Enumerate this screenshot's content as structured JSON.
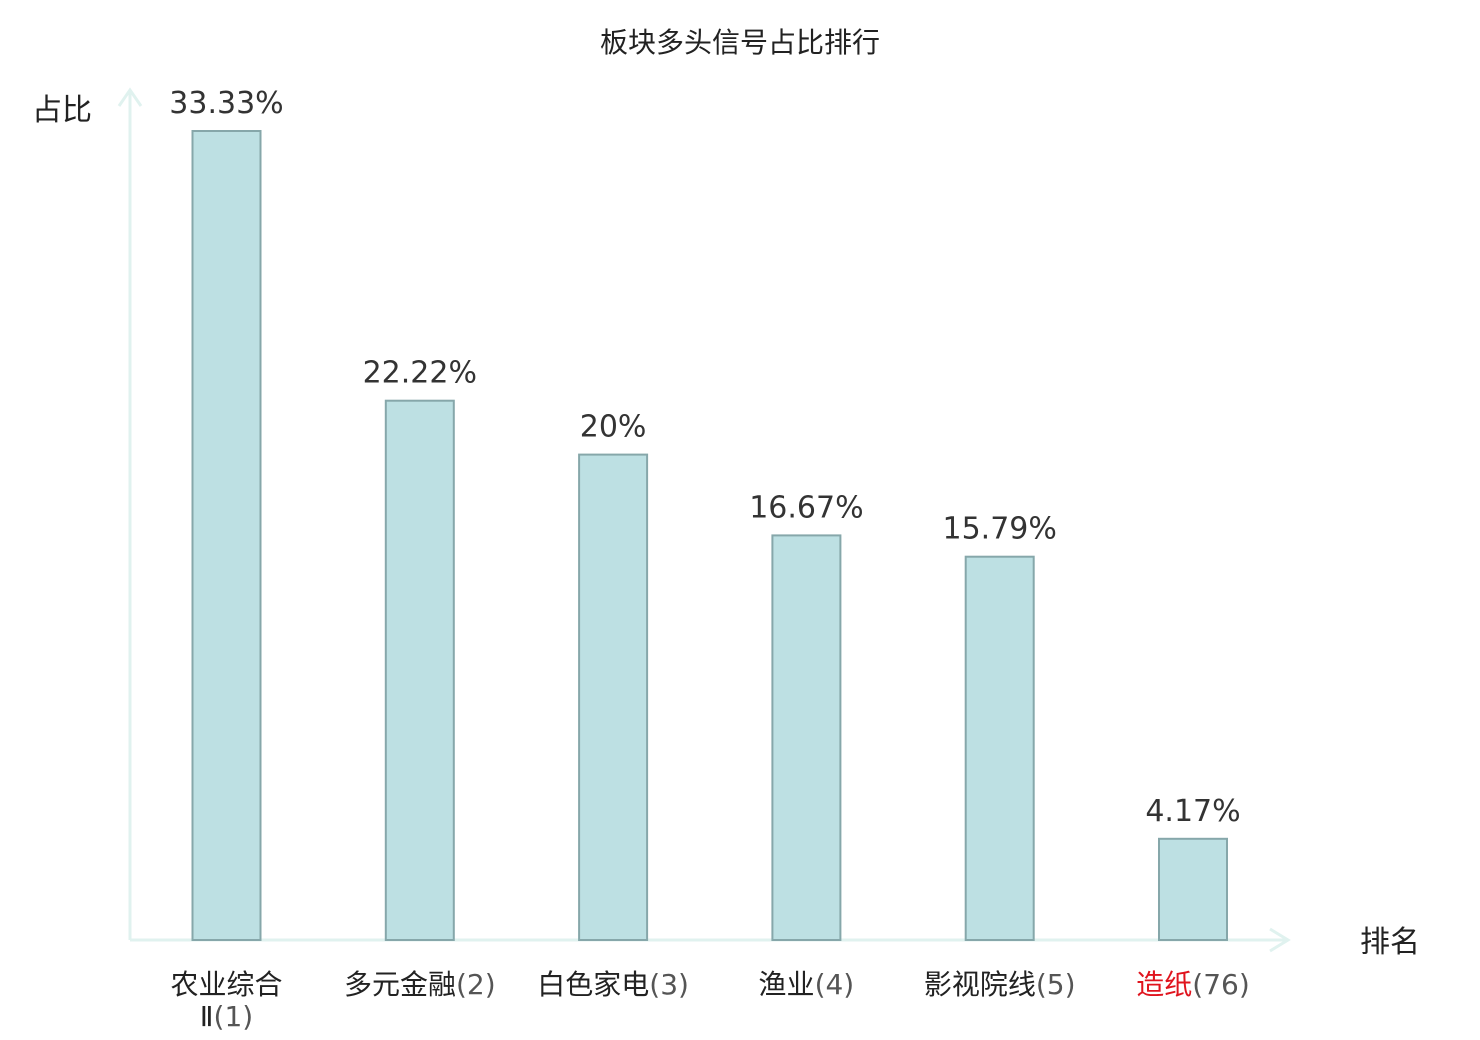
{
  "chart_data": {
    "type": "bar",
    "title": "板块多头信号占比排行",
    "ylabel": "占比",
    "xlabel": "排名",
    "ylim": [
      0,
      35
    ],
    "grid": false,
    "categories": [
      {
        "name": "农业综合Ⅱ",
        "rank": "(1)",
        "highlight": false,
        "value": 33.33,
        "label": "33.33%"
      },
      {
        "name": "多元金融",
        "rank": "(2)",
        "highlight": false,
        "value": 22.22,
        "label": "22.22%"
      },
      {
        "name": "白色家电",
        "rank": "(3)",
        "highlight": false,
        "value": 20,
        "label": "20%"
      },
      {
        "name": "渔业",
        "rank": "(4)",
        "highlight": false,
        "value": 16.67,
        "label": "16.67%"
      },
      {
        "name": "影视院线",
        "rank": "(5)",
        "highlight": false,
        "value": 15.79,
        "label": "15.79%"
      },
      {
        "name": "造纸",
        "rank": "(76)",
        "highlight": true,
        "value": 4.17,
        "label": "4.17%"
      }
    ],
    "colors": {
      "bar_fill": "#bde0e3",
      "bar_stroke": "#86a7aa",
      "axis": "#e0f2ef",
      "highlight": "#e0141e"
    }
  }
}
